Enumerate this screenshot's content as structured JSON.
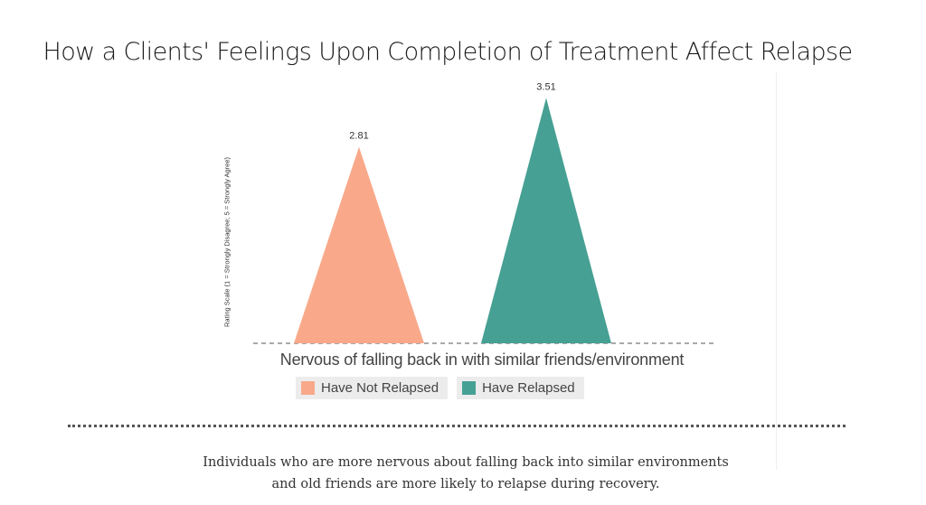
{
  "title": "How a Clients' Feelings Upon Completion of Treatment Affect Relapse",
  "chart_data": {
    "type": "bar",
    "mark_shape": "triangle",
    "categories": [
      "Nervous of falling back in with similar friends/environment"
    ],
    "xlabel": "Nervous of falling back in with similar friends/environment",
    "ylabel": "Rating Scale (1 = Strongly Disagree; 5 = Strongly Agree)",
    "ylim": [
      0,
      3.8
    ],
    "grid": false,
    "legend_position": "bottom",
    "series": [
      {
        "name": "Have Not Relapsed",
        "color": "#F9A98A",
        "values": [
          2.81
        ],
        "label": "2.81"
      },
      {
        "name": "Have Relapsed",
        "color": "#46A093",
        "values": [
          3.51
        ],
        "label": "3.51"
      }
    ]
  },
  "caption": {
    "line1": "Individuals who are more nervous about falling back into similar environments",
    "line2": "and old friends are more likely to relapse during recovery."
  }
}
